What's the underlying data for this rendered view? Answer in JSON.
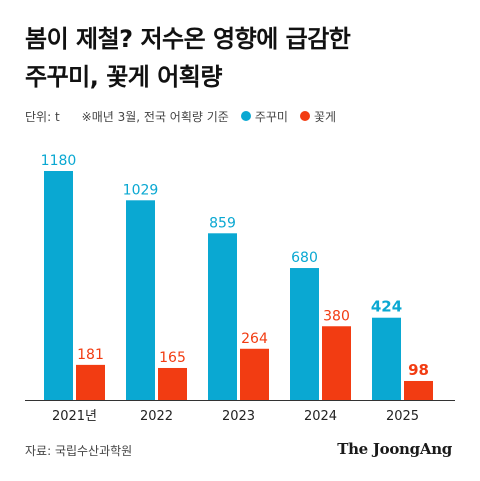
{
  "title_lines": [
    "봄이 제철? 저수온 영향에 급감한",
    "주꾸미, 꽃게 어획량"
  ],
  "unit_label": "단위: t",
  "note": "※매년 3월, 전국 어획량 기준",
  "source": "자료: 국립수산과학원",
  "brand": "The JoongAng",
  "colors": {
    "jukkumi": "#0aa8d2",
    "kkotge": "#f23c12",
    "axis": "#333333"
  },
  "chart_data": {
    "type": "bar",
    "categories": [
      "2021년",
      "2022",
      "2023",
      "2024",
      "2025"
    ],
    "series": [
      {
        "name": "주꾸미",
        "values": [
          1180,
          1029,
          859,
          680,
          424
        ],
        "labels": [
          "1180",
          "1029",
          "859",
          "680",
          "424"
        ]
      },
      {
        "name": "꽃게",
        "values": [
          181,
          165,
          264,
          380,
          98
        ],
        "labels": [
          "181",
          "165",
          "264",
          "380",
          "98"
        ]
      }
    ],
    "highlight_index": 4,
    "ylim": [
      0,
      1180
    ],
    "legend_position": "top",
    "grid": false
  }
}
